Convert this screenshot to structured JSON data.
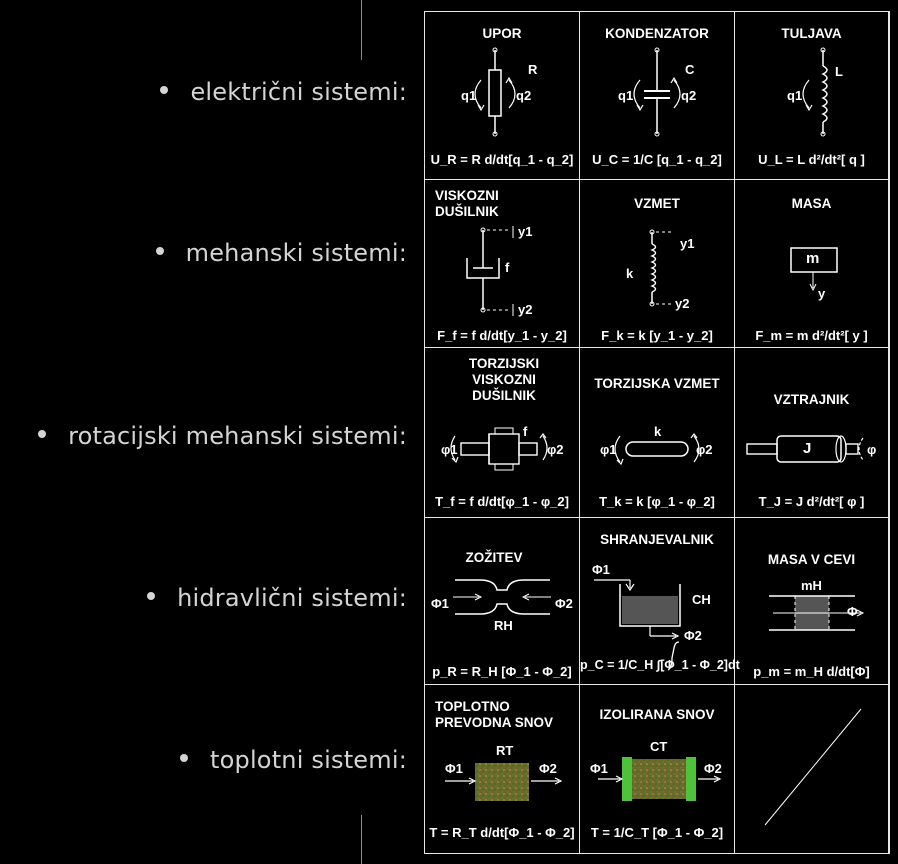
{
  "categories": [
    "električni sistemi:",
    "mehanski sistemi:",
    "rotacijski mehanski sistemi:",
    "hidravlični sistemi:",
    "toplotni sistemi:"
  ],
  "cells": {
    "upor": {
      "title": "UPOR",
      "formula": "U_R = R d/dt[q_1 - q_2]",
      "labels": {
        "r": "R",
        "q1": "q1",
        "q2": "q2"
      }
    },
    "kondenzator": {
      "title": "KONDENZATOR",
      "formula": "U_C = 1/C [q_1 - q_2]",
      "labels": {
        "c": "C",
        "q1": "q1",
        "q2": "q2"
      }
    },
    "tuljava": {
      "title": "TULJAVA",
      "formula": "U_L = L d²/dt²[ q ]",
      "labels": {
        "l": "L",
        "q1": "q1"
      }
    },
    "viskozni": {
      "title": "VISKOZNI DUŠILNIK",
      "formula": "F_f = f d/dt[y_1 - y_2]",
      "labels": {
        "f": "f",
        "y1": "y1",
        "y2": "y2"
      }
    },
    "vzmet": {
      "title": "VZMET",
      "formula": "F_k = k [y_1 - y_2]",
      "labels": {
        "k": "k",
        "y1": "y1",
        "y2": "y2"
      }
    },
    "masa": {
      "title": "MASA",
      "formula": "F_m = m d²/dt²[ y ]",
      "labels": {
        "m": "m",
        "y": "y"
      }
    },
    "torz_dusilnik": {
      "title": "TORZIJSKI VISKOZNI DUŠILNIK",
      "formula": "T_f = f d/dt[φ_1 - φ_2]",
      "labels": {
        "f": "f",
        "phi1": "φ1",
        "phi2": "φ2"
      }
    },
    "torz_vzmet": {
      "title": "TORZIJSKA VZMET",
      "formula": "T_k = k [φ_1 - φ_2]",
      "labels": {
        "k": "k",
        "phi1": "φ1",
        "phi2": "φ2"
      }
    },
    "vztrajnik": {
      "title": "VZTRAJNIK",
      "formula": "T_J = J d²/dt²[ φ ]",
      "labels": {
        "j": "J",
        "phi": "φ"
      }
    },
    "zozitev": {
      "title": "ZOŽITEV",
      "formula": "p_R = R_H [Φ_1 - Φ_2]",
      "labels": {
        "phi1": "Φ1",
        "phi2": "Φ2",
        "rh": "RH"
      }
    },
    "shranjevalnik": {
      "title": "SHRANJEVALNIK",
      "formula": "p_C = 1/C_H ∫[Φ_1 - Φ_2]dt",
      "labels": {
        "phi1": "Φ1",
        "phi2": "Φ2",
        "ch": "CH"
      }
    },
    "masa_v_cevi": {
      "title": "MASA V CEVI",
      "formula": "p_m = m_H d/dt[Φ]",
      "labels": {
        "mh": "mH",
        "phi": "Φ"
      }
    },
    "toplotno": {
      "title": "TOPLOTNO PREVODNA SNOV",
      "formula": "T = R_T d/dt[Φ_1 - Φ_2]",
      "labels": {
        "rt": "RT",
        "phi1": "Φ1",
        "phi2": "Φ2"
      }
    },
    "izolirana": {
      "title": "IZOLIRANA SNOV",
      "formula": "T = 1/C_T [Φ_1 - Φ_2]",
      "labels": {
        "ct": "CT",
        "phi1": "Φ1",
        "phi2": "Φ2"
      }
    }
  }
}
